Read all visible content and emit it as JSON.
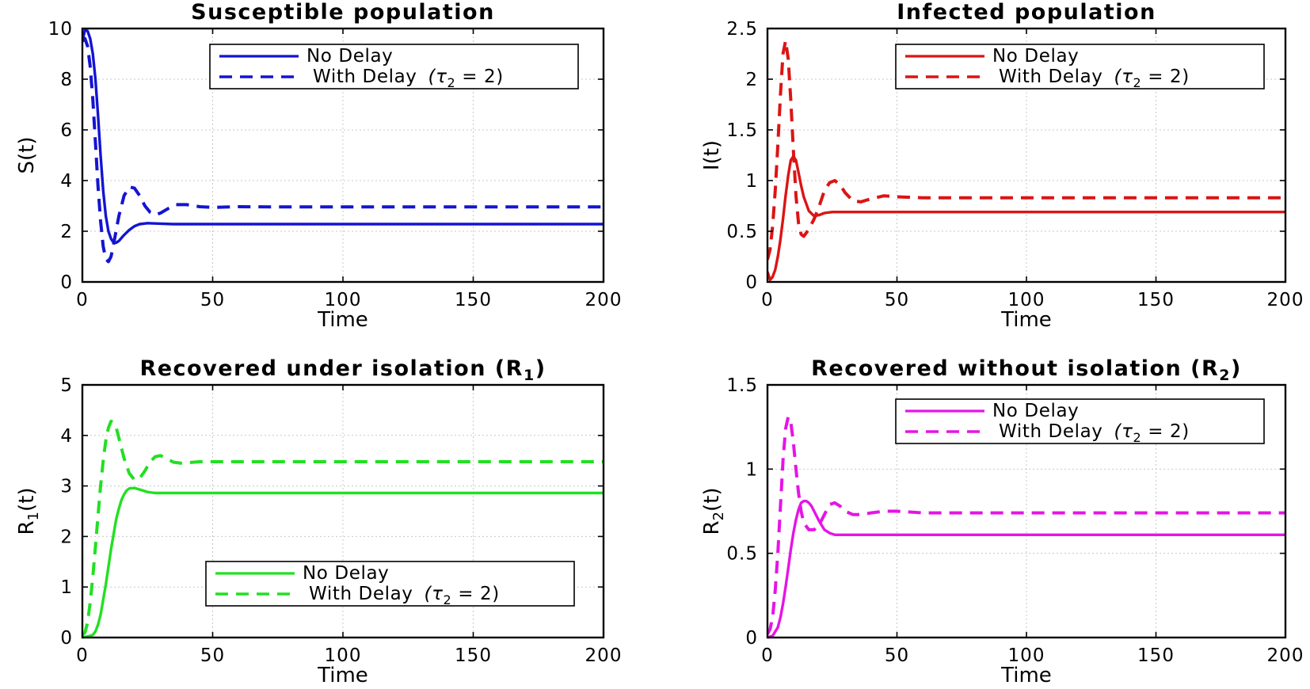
{
  "legend_no_delay": "No Delay",
  "legend_with_delay_prefix": "With  Delay",
  "legend_with_delay_symbol": "(τ",
  "legend_with_delay_subscript": "2",
  "legend_with_delay_suffix": " =  2)",
  "chart_data": [
    {
      "type": "line",
      "title": "Susceptible population",
      "xlabel": "Time",
      "ylabel": "S(t)",
      "xlim": [
        0,
        200
      ],
      "ylim": [
        0,
        10
      ],
      "xticks": [
        0,
        50,
        100,
        150,
        200
      ],
      "yticks": [
        0,
        2,
        4,
        6,
        8,
        10
      ],
      "xticklabels": [
        "0",
        "50",
        "100",
        "150",
        "200"
      ],
      "yticklabels": [
        "0",
        "2",
        "4",
        "6",
        "8",
        "10"
      ],
      "grid": true,
      "legend_position": "top-right",
      "color": "#1414d2",
      "series": [
        {
          "name": "No Delay",
          "style": "solid",
          "x": [
            0,
            1,
            2,
            3,
            4,
            5,
            6,
            7,
            8,
            9,
            10,
            11,
            12,
            13,
            14,
            16,
            18,
            20,
            22,
            25,
            30,
            35,
            40,
            50,
            75,
            100,
            150,
            200
          ],
          "y": [
            9.5,
            9.95,
            9.9,
            9.6,
            9.0,
            8.0,
            6.6,
            5.0,
            3.6,
            2.6,
            2.0,
            1.7,
            1.55,
            1.55,
            1.62,
            1.85,
            2.05,
            2.2,
            2.28,
            2.32,
            2.3,
            2.28,
            2.28,
            2.28,
            2.28,
            2.28,
            2.28,
            2.28
          ]
        },
        {
          "name": "With Delay",
          "style": "dashed",
          "x": [
            0,
            1,
            2,
            3,
            4,
            5,
            6,
            7,
            8,
            9,
            10,
            11,
            12,
            14,
            16,
            18,
            20,
            22,
            24,
            26,
            28,
            30,
            33,
            36,
            40,
            45,
            50,
            60,
            75,
            100,
            150,
            200
          ],
          "y": [
            9.5,
            9.6,
            9.3,
            8.5,
            7.2,
            5.5,
            3.8,
            2.4,
            1.4,
            0.9,
            0.8,
            1.0,
            1.5,
            2.6,
            3.4,
            3.75,
            3.7,
            3.4,
            3.0,
            2.75,
            2.65,
            2.72,
            2.9,
            3.05,
            3.05,
            2.97,
            2.94,
            2.97,
            2.96,
            2.96,
            2.96,
            2.96
          ]
        }
      ]
    },
    {
      "type": "line",
      "title": "Infected population",
      "xlabel": "Time",
      "ylabel": "I(t)",
      "xlim": [
        0,
        200
      ],
      "ylim": [
        0,
        2.5
      ],
      "xticks": [
        0,
        50,
        100,
        150,
        200
      ],
      "yticks": [
        0,
        0.5,
        1,
        1.5,
        2,
        2.5
      ],
      "xticklabels": [
        "0",
        "50",
        "100",
        "150",
        "200"
      ],
      "yticklabels": [
        "0",
        "0.5",
        "1",
        "1.5",
        "2",
        "2.5"
      ],
      "grid": true,
      "legend_position": "top-right",
      "color": "#dc1414",
      "series": [
        {
          "name": "No Delay",
          "style": "solid",
          "x": [
            0,
            1,
            2,
            3,
            4,
            5,
            6,
            7,
            8,
            9,
            10,
            11,
            12,
            13,
            14,
            16,
            18,
            20,
            22,
            25,
            30,
            35,
            40,
            50,
            75,
            100,
            150,
            200
          ],
          "y": [
            0.1,
            0.02,
            0.05,
            0.12,
            0.25,
            0.42,
            0.62,
            0.85,
            1.05,
            1.2,
            1.24,
            1.2,
            1.08,
            0.95,
            0.84,
            0.7,
            0.65,
            0.66,
            0.68,
            0.69,
            0.69,
            0.69,
            0.69,
            0.69,
            0.69,
            0.69,
            0.69,
            0.69
          ]
        },
        {
          "name": "With Delay",
          "style": "dashed",
          "x": [
            0,
            1,
            2,
            3,
            4,
            5,
            6,
            7,
            8,
            9,
            10,
            11,
            12,
            13,
            14,
            16,
            18,
            20,
            22,
            24,
            26,
            28,
            30,
            33,
            36,
            40,
            45,
            50,
            60,
            75,
            100,
            150,
            200
          ],
          "y": [
            0.22,
            0.32,
            0.55,
            0.9,
            1.35,
            1.85,
            2.25,
            2.38,
            2.2,
            1.8,
            1.3,
            0.85,
            0.58,
            0.47,
            0.45,
            0.52,
            0.62,
            0.75,
            0.9,
            0.98,
            1.0,
            0.96,
            0.88,
            0.8,
            0.79,
            0.82,
            0.85,
            0.84,
            0.83,
            0.83,
            0.83,
            0.83,
            0.83
          ]
        }
      ]
    },
    {
      "type": "line",
      "title": "Recovered  under  isolation  (R",
      "title_subscript": "1",
      "title_suffix": ")",
      "xlabel": "Time",
      "ylabel": "R",
      "ylabel_subscript": "1",
      "ylabel_suffix": "(t)",
      "xlim": [
        0,
        200
      ],
      "ylim": [
        0,
        5
      ],
      "xticks": [
        0,
        50,
        100,
        150,
        200
      ],
      "yticks": [
        0,
        1,
        2,
        3,
        4,
        5
      ],
      "xticklabels": [
        "0",
        "50",
        "100",
        "150",
        "200"
      ],
      "yticklabels": [
        "0",
        "1",
        "2",
        "3",
        "4",
        "5"
      ],
      "grid": true,
      "legend_position": "bottom-right",
      "color": "#22e022",
      "series": [
        {
          "name": "No Delay",
          "style": "solid",
          "x": [
            0,
            2,
            4,
            5,
            6,
            7,
            8,
            9,
            10,
            11,
            12,
            13,
            14,
            15,
            16,
            17,
            18,
            20,
            22,
            25,
            28,
            30,
            35,
            40,
            50,
            75,
            100,
            150,
            200
          ],
          "y": [
            0.0,
            0.02,
            0.05,
            0.12,
            0.25,
            0.45,
            0.75,
            1.05,
            1.4,
            1.75,
            2.05,
            2.35,
            2.55,
            2.72,
            2.83,
            2.91,
            2.95,
            2.96,
            2.93,
            2.88,
            2.86,
            2.86,
            2.86,
            2.86,
            2.86,
            2.86,
            2.86,
            2.86,
            2.86
          ]
        },
        {
          "name": "With Delay",
          "style": "dashed",
          "x": [
            0,
            1,
            2,
            3,
            4,
            5,
            6,
            7,
            8,
            9,
            10,
            11,
            12,
            13,
            14,
            16,
            18,
            20,
            22,
            24,
            26,
            28,
            30,
            32,
            35,
            38,
            40,
            45,
            50,
            60,
            75,
            100,
            150,
            200
          ],
          "y": [
            0.05,
            0.1,
            0.3,
            0.7,
            1.2,
            1.8,
            2.4,
            3.0,
            3.5,
            3.9,
            4.15,
            4.28,
            4.25,
            4.15,
            3.95,
            3.55,
            3.25,
            3.12,
            3.15,
            3.3,
            3.48,
            3.58,
            3.6,
            3.55,
            3.47,
            3.45,
            3.46,
            3.48,
            3.48,
            3.48,
            3.48,
            3.48,
            3.48,
            3.48
          ]
        }
      ]
    },
    {
      "type": "line",
      "title": "Recovered  without  isolation  (R",
      "title_subscript": "2",
      "title_suffix": ")",
      "xlabel": "Time",
      "ylabel": "R",
      "ylabel_subscript": "2",
      "ylabel_suffix": "(t)",
      "xlim": [
        0,
        200
      ],
      "ylim": [
        0,
        1.5
      ],
      "xticks": [
        0,
        50,
        100,
        150,
        200
      ],
      "yticks": [
        0,
        0.5,
        1,
        1.5
      ],
      "xticklabels": [
        "0",
        "50",
        "100",
        "150",
        "200"
      ],
      "yticklabels": [
        "0",
        "0.5",
        "1",
        "1.5"
      ],
      "grid": true,
      "legend_position": "top-right",
      "color": "#e614e6",
      "series": [
        {
          "name": "No Delay",
          "style": "solid",
          "x": [
            0,
            2,
            4,
            5,
            6,
            7,
            8,
            9,
            10,
            11,
            12,
            13,
            14,
            15,
            16,
            17,
            18,
            20,
            22,
            24,
            26,
            28,
            30,
            35,
            40,
            50,
            75,
            100,
            150,
            200
          ],
          "y": [
            0.0,
            0.01,
            0.06,
            0.12,
            0.2,
            0.3,
            0.41,
            0.52,
            0.62,
            0.7,
            0.76,
            0.8,
            0.81,
            0.81,
            0.8,
            0.78,
            0.75,
            0.69,
            0.64,
            0.62,
            0.61,
            0.61,
            0.61,
            0.61,
            0.61,
            0.61,
            0.61,
            0.61,
            0.61,
            0.61
          ]
        },
        {
          "name": "With Delay",
          "style": "dashed",
          "x": [
            0,
            1,
            2,
            3,
            4,
            5,
            6,
            7,
            8,
            9,
            10,
            11,
            12,
            13,
            14,
            16,
            18,
            20,
            22,
            24,
            26,
            28,
            30,
            33,
            36,
            40,
            45,
            50,
            60,
            75,
            100,
            150,
            200
          ],
          "y": [
            0.02,
            0.05,
            0.12,
            0.28,
            0.5,
            0.78,
            1.05,
            1.24,
            1.31,
            1.28,
            1.16,
            1.0,
            0.86,
            0.75,
            0.68,
            0.64,
            0.64,
            0.67,
            0.73,
            0.79,
            0.8,
            0.78,
            0.75,
            0.73,
            0.73,
            0.74,
            0.75,
            0.75,
            0.74,
            0.74,
            0.74,
            0.74,
            0.74
          ]
        }
      ]
    }
  ]
}
